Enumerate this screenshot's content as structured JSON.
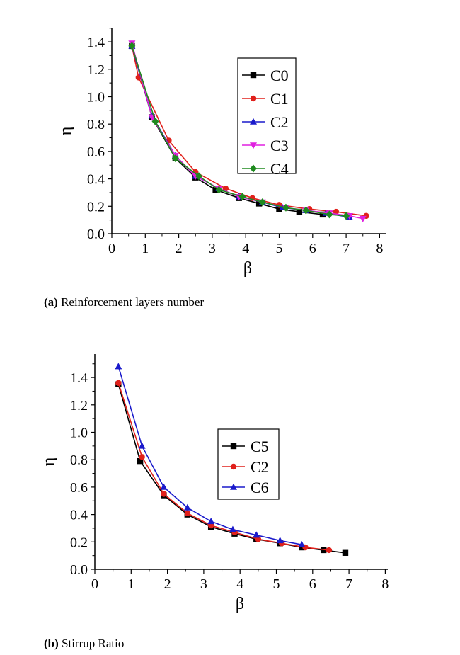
{
  "captions": [
    {
      "tag": "(a)",
      "text": "Reinforcement layers number"
    },
    {
      "tag": "(b)",
      "text": "Stirrup Ratio"
    }
  ],
  "chart_data": [
    {
      "type": "line",
      "xlabel": "β",
      "ylabel": "η",
      "xlim": [
        0,
        8
      ],
      "ylim": [
        0,
        1.5
      ],
      "xticks": [
        "0",
        "1",
        "2",
        "3",
        "4",
        "5",
        "6",
        "7",
        "8"
      ],
      "yticks": [
        "0.0",
        "0.2",
        "0.4",
        "0.6",
        "0.8",
        "1.0",
        "1.2",
        "1.4"
      ],
      "legend_position": "top-right",
      "series": [
        {
          "name": "C0",
          "color": "#000000",
          "marker": "square",
          "x": [
            0.6,
            1.2,
            1.9,
            2.5,
            3.1,
            3.8,
            4.4,
            5.0,
            5.6,
            6.3
          ],
          "y": [
            1.37,
            0.85,
            0.55,
            0.41,
            0.32,
            0.26,
            0.22,
            0.18,
            0.16,
            0.14
          ]
        },
        {
          "name": "C1",
          "color": "#e0201b",
          "marker": "circle",
          "x": [
            0.6,
            0.8,
            1.7,
            2.5,
            3.4,
            4.2,
            5.0,
            5.9,
            6.7,
            7.6
          ],
          "y": [
            1.37,
            1.14,
            0.68,
            0.45,
            0.33,
            0.26,
            0.21,
            0.18,
            0.16,
            0.13
          ]
        },
        {
          "name": "C2",
          "color": "#1a1acb",
          "marker": "triangle-up",
          "x": [
            0.6,
            1.2,
            1.9,
            2.5,
            3.2,
            3.8,
            4.5,
            5.1,
            5.8,
            6.4,
            7.1
          ],
          "y": [
            1.37,
            0.86,
            0.57,
            0.42,
            0.33,
            0.27,
            0.23,
            0.19,
            0.17,
            0.15,
            0.12
          ]
        },
        {
          "name": "C3",
          "color": "#e020e0",
          "marker": "triangle-down",
          "x": [
            0.6,
            1.2,
            1.9,
            2.5,
            3.2,
            3.8,
            4.5,
            5.2,
            5.8,
            6.5,
            7.1,
            7.5
          ],
          "y": [
            1.39,
            0.85,
            0.57,
            0.42,
            0.33,
            0.27,
            0.23,
            0.19,
            0.17,
            0.15,
            0.13,
            0.11
          ]
        },
        {
          "name": "C4",
          "color": "#1f8a1f",
          "marker": "diamond",
          "x": [
            0.6,
            1.3,
            1.9,
            2.6,
            3.2,
            3.9,
            4.5,
            5.2,
            5.8,
            6.5,
            7.0
          ],
          "y": [
            1.37,
            0.82,
            0.55,
            0.42,
            0.32,
            0.27,
            0.23,
            0.19,
            0.17,
            0.14,
            0.13
          ]
        }
      ]
    },
    {
      "type": "line",
      "xlabel": "β",
      "ylabel": "η",
      "xlim": [
        0,
        8
      ],
      "ylim": [
        0,
        1.5
      ],
      "xticks": [
        "0",
        "1",
        "2",
        "3",
        "4",
        "5",
        "6",
        "7",
        "8"
      ],
      "yticks": [
        "0.0",
        "0.2",
        "0.4",
        "0.6",
        "0.8",
        "1.0",
        "1.2",
        "1.4"
      ],
      "legend_position": "center-right",
      "series": [
        {
          "name": "C5",
          "color": "#000000",
          "marker": "square",
          "x": [
            0.65,
            1.25,
            1.9,
            2.55,
            3.2,
            3.85,
            4.45,
            5.1,
            5.7,
            6.3,
            6.9
          ],
          "y": [
            1.35,
            0.79,
            0.54,
            0.4,
            0.31,
            0.26,
            0.22,
            0.19,
            0.16,
            0.14,
            0.12
          ]
        },
        {
          "name": "C2",
          "color": "#e0201b",
          "marker": "circle",
          "x": [
            0.65,
            1.3,
            1.9,
            2.55,
            3.2,
            3.85,
            4.5,
            5.15,
            5.8,
            6.45
          ],
          "y": [
            1.36,
            0.82,
            0.55,
            0.41,
            0.32,
            0.27,
            0.22,
            0.19,
            0.16,
            0.14
          ]
        },
        {
          "name": "C6",
          "color": "#1a1acb",
          "marker": "triangle-up",
          "x": [
            0.65,
            1.3,
            1.9,
            2.55,
            3.2,
            3.8,
            4.45,
            5.1,
            5.7
          ],
          "y": [
            1.48,
            0.9,
            0.6,
            0.45,
            0.35,
            0.29,
            0.25,
            0.21,
            0.18
          ]
        }
      ]
    }
  ]
}
